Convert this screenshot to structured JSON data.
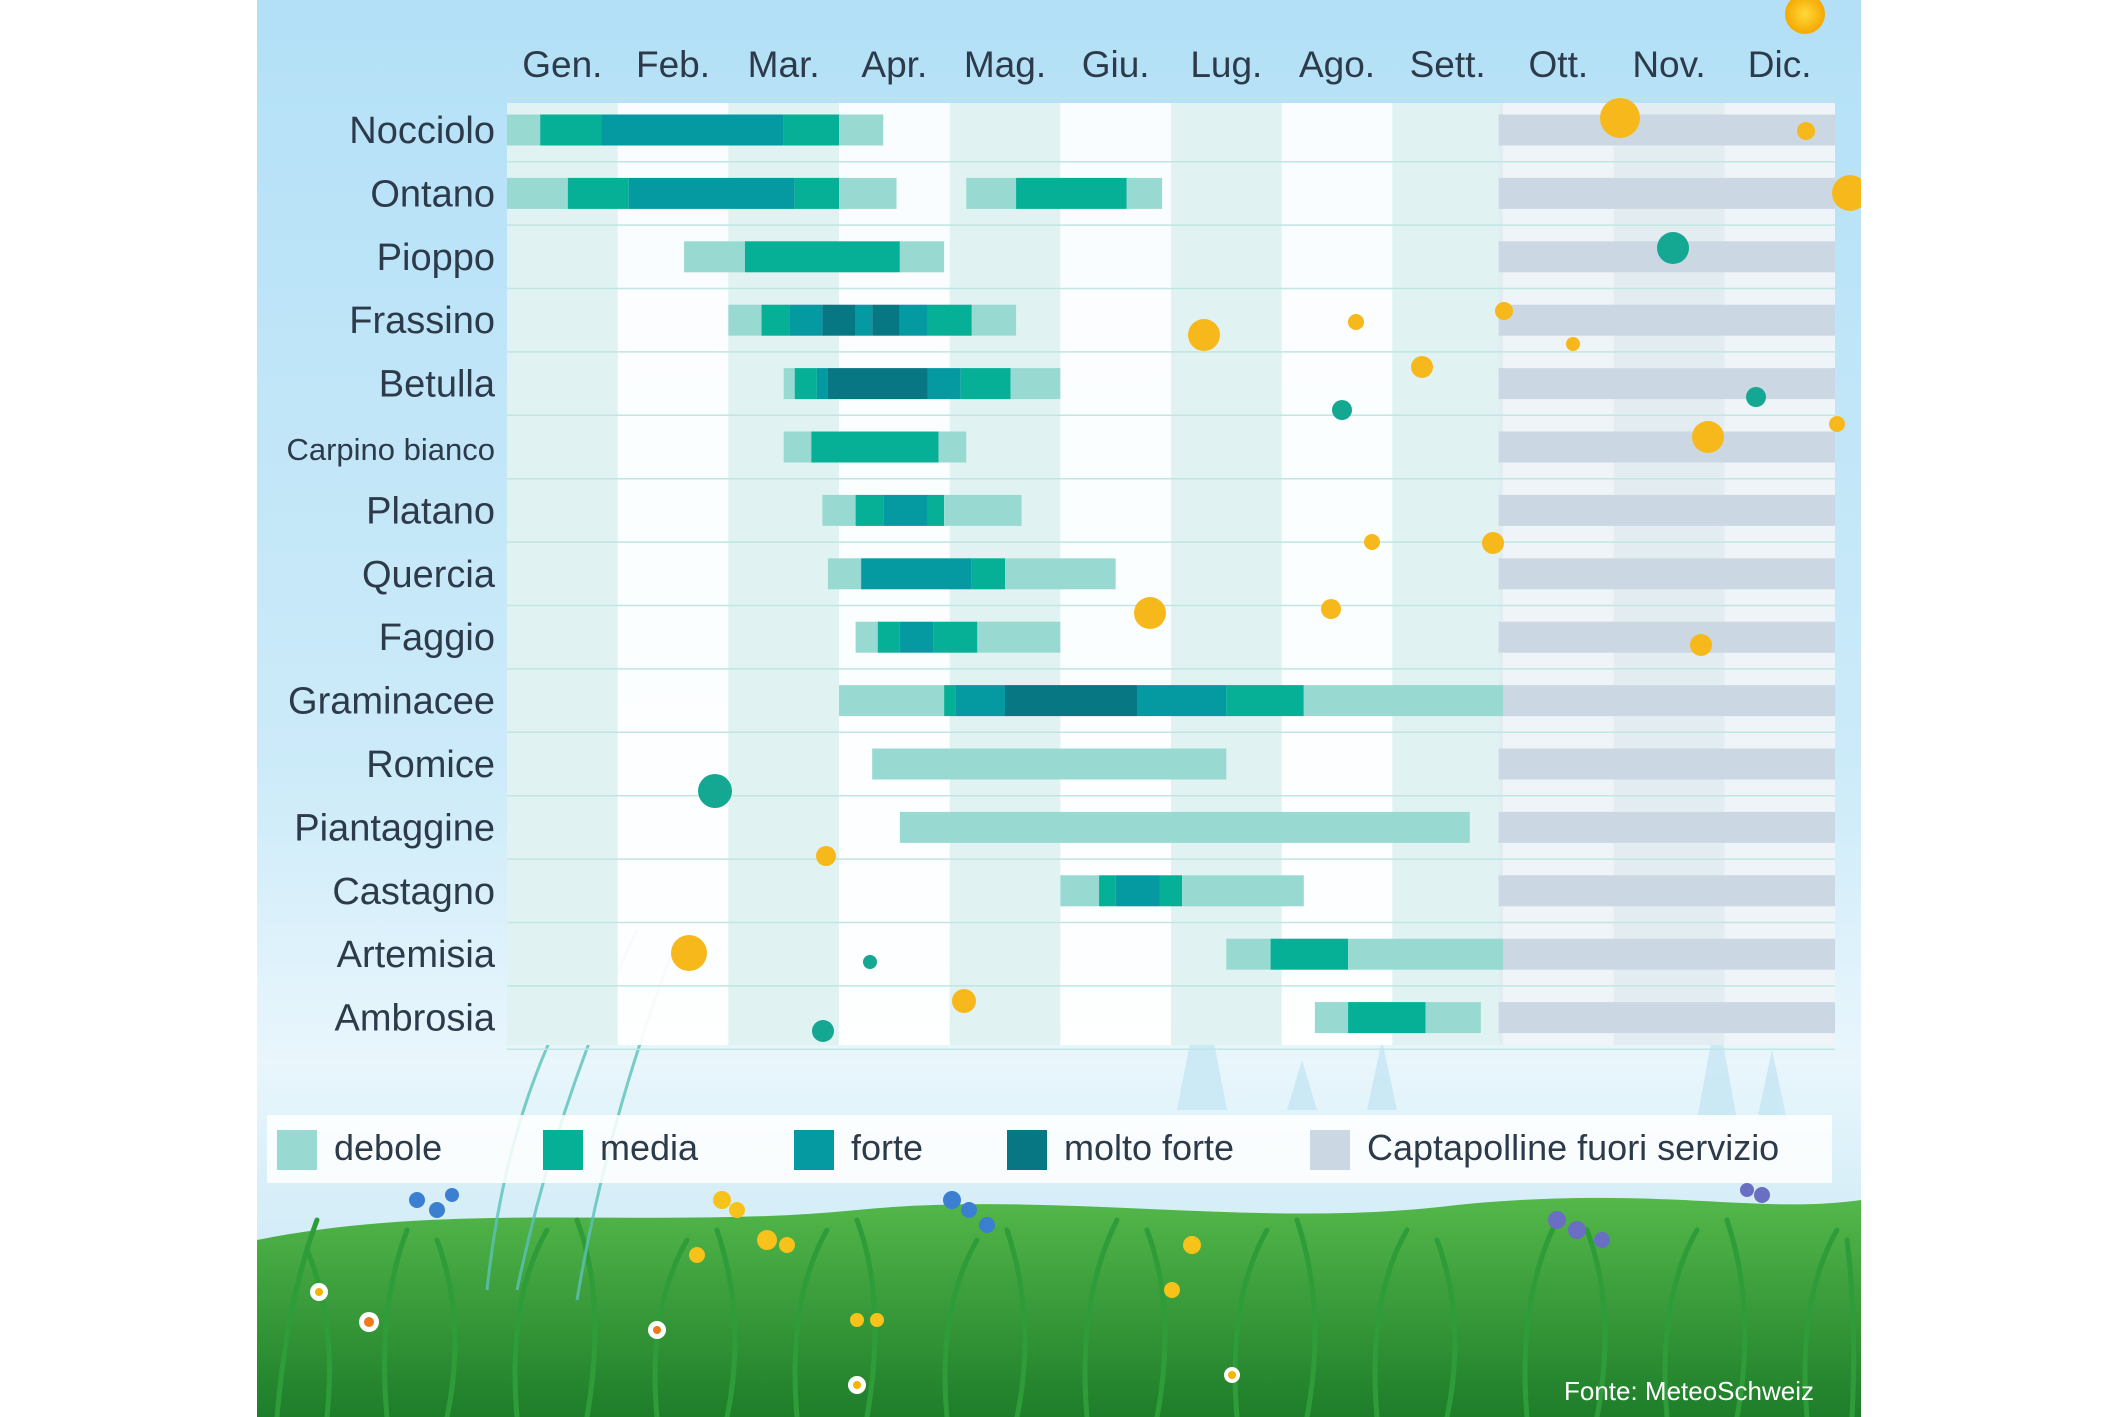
{
  "chart_data": {
    "type": "bar",
    "subtype": "pollen-calendar",
    "x_labels": [
      "Gen.",
      "Feb.",
      "Mar.",
      "Apr.",
      "Mag.",
      "Giu.",
      "Lug.",
      "Ago.",
      "Sett.",
      "Ott.",
      "Nov.",
      "Dic."
    ],
    "x_unit": "month (1 = start of Gen., 13 = end of Dic.)",
    "out_of_service_from": 9.96,
    "levels": {
      "debole": "#98dad2",
      "media": "#06b096",
      "forte": "#0599a1",
      "molto_forte": "#077784",
      "fuori_servizio": "#cbd8e3"
    },
    "rows": [
      {
        "name": "Nocciolo",
        "segments": [
          [
            1.0,
            1.3,
            "debole"
          ],
          [
            1.3,
            1.85,
            "media"
          ],
          [
            1.85,
            3.5,
            "forte"
          ],
          [
            3.5,
            4.0,
            "media"
          ],
          [
            4.0,
            4.4,
            "debole"
          ]
        ]
      },
      {
        "name": "Ontano",
        "segments": [
          [
            1.0,
            1.55,
            "debole"
          ],
          [
            1.55,
            2.1,
            "media"
          ],
          [
            2.1,
            3.6,
            "forte"
          ],
          [
            3.6,
            4.0,
            "media"
          ],
          [
            4.0,
            4.52,
            "debole"
          ],
          [
            5.15,
            5.6,
            "debole"
          ],
          [
            5.6,
            6.6,
            "media"
          ],
          [
            6.6,
            6.92,
            "debole"
          ]
        ]
      },
      {
        "name": "Pioppo",
        "segments": [
          [
            2.6,
            3.15,
            "debole"
          ],
          [
            3.15,
            4.55,
            "media"
          ],
          [
            4.55,
            4.95,
            "debole"
          ]
        ]
      },
      {
        "name": "Frassino",
        "segments": [
          [
            3.0,
            3.3,
            "debole"
          ],
          [
            3.3,
            3.55,
            "media"
          ],
          [
            3.55,
            3.85,
            "forte"
          ],
          [
            3.85,
            4.15,
            "molto_forte"
          ],
          [
            4.15,
            4.3,
            "forte"
          ],
          [
            4.3,
            4.55,
            "molto_forte"
          ],
          [
            4.55,
            4.8,
            "forte"
          ],
          [
            4.8,
            5.2,
            "media"
          ],
          [
            5.2,
            5.6,
            "debole"
          ]
        ]
      },
      {
        "name": "Betulla",
        "segments": [
          [
            3.5,
            3.6,
            "debole"
          ],
          [
            3.6,
            3.8,
            "media"
          ],
          [
            3.8,
            3.9,
            "forte"
          ],
          [
            3.9,
            4.8,
            "molto_forte"
          ],
          [
            4.8,
            5.1,
            "forte"
          ],
          [
            5.1,
            5.55,
            "media"
          ],
          [
            5.55,
            6.0,
            "debole"
          ]
        ]
      },
      {
        "name": "Carpino bianco",
        "segments": [
          [
            3.5,
            3.75,
            "debole"
          ],
          [
            3.75,
            4.9,
            "media"
          ],
          [
            4.9,
            5.15,
            "debole"
          ]
        ]
      },
      {
        "name": "Platano",
        "segments": [
          [
            3.85,
            4.15,
            "debole"
          ],
          [
            4.15,
            4.4,
            "media"
          ],
          [
            4.4,
            4.8,
            "forte"
          ],
          [
            4.8,
            4.95,
            "media"
          ],
          [
            4.95,
            5.65,
            "debole"
          ]
        ]
      },
      {
        "name": "Quercia",
        "segments": [
          [
            3.9,
            4.2,
            "debole"
          ],
          [
            4.2,
            5.2,
            "forte"
          ],
          [
            5.2,
            5.5,
            "media"
          ],
          [
            5.5,
            6.5,
            "debole"
          ]
        ]
      },
      {
        "name": "Faggio",
        "segments": [
          [
            4.15,
            4.35,
            "debole"
          ],
          [
            4.35,
            4.55,
            "media"
          ],
          [
            4.55,
            4.85,
            "forte"
          ],
          [
            4.85,
            5.25,
            "media"
          ],
          [
            5.25,
            6.0,
            "debole"
          ]
        ]
      },
      {
        "name": "Graminacee",
        "segments": [
          [
            4.0,
            4.95,
            "debole"
          ],
          [
            4.95,
            5.05,
            "media"
          ],
          [
            5.05,
            5.5,
            "forte"
          ],
          [
            5.5,
            6.7,
            "molto_forte"
          ],
          [
            6.7,
            7.5,
            "forte"
          ],
          [
            7.5,
            8.2,
            "media"
          ],
          [
            8.2,
            10.0,
            "debole"
          ]
        ]
      },
      {
        "name": "Romice",
        "segments": [
          [
            4.3,
            7.5,
            "debole"
          ]
        ]
      },
      {
        "name": "Piantaggine",
        "segments": [
          [
            4.55,
            9.7,
            "debole"
          ]
        ]
      },
      {
        "name": "Castagno",
        "segments": [
          [
            6.0,
            6.35,
            "debole"
          ],
          [
            6.35,
            6.5,
            "media"
          ],
          [
            6.5,
            6.9,
            "forte"
          ],
          [
            6.9,
            7.1,
            "media"
          ],
          [
            7.1,
            8.2,
            "debole"
          ]
        ]
      },
      {
        "name": "Artemisia",
        "segments": [
          [
            7.5,
            7.9,
            "debole"
          ],
          [
            7.9,
            8.6,
            "media"
          ],
          [
            8.6,
            10.0,
            "debole"
          ]
        ]
      },
      {
        "name": "Ambrosia",
        "segments": [
          [
            8.3,
            8.6,
            "debole"
          ],
          [
            8.6,
            9.3,
            "media"
          ],
          [
            9.3,
            9.8,
            "debole"
          ]
        ]
      }
    ],
    "legend": [
      {
        "key": "debole",
        "label": "debole"
      },
      {
        "key": "media",
        "label": "media"
      },
      {
        "key": "forte",
        "label": "forte"
      },
      {
        "key": "molto_forte",
        "label": "molto forte"
      },
      {
        "key": "fuori_servizio",
        "label": "Captapolline fuori servizio"
      }
    ],
    "legend_position": "bottom",
    "source": "Fonte: MeteoSchweiz"
  }
}
